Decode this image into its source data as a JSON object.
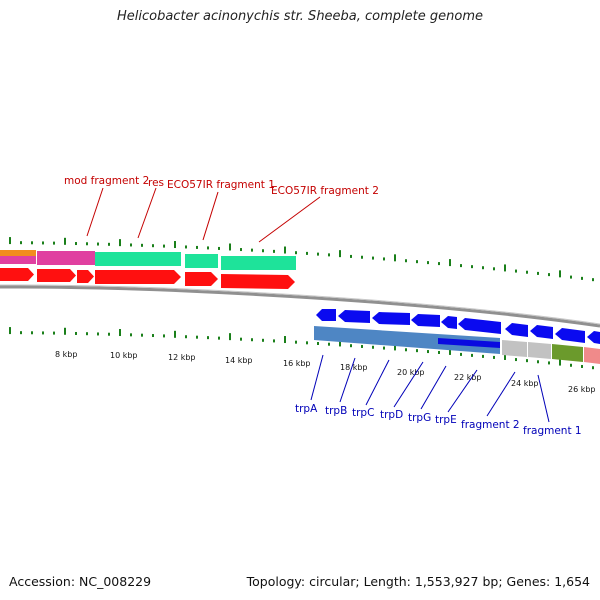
{
  "title": "Helicobacter acinonychis str. Sheeba, complete genome",
  "footer": {
    "accession": "Accession: NC_008229",
    "summary": "Topology: circular; Length: 1,553,927 bp; Genes: 1,654"
  },
  "scale_labels": [
    "8 kbp",
    "10 kbp",
    "12 kbp",
    "14 kbp",
    "16 kbp",
    "18 kbp",
    "20 kbp",
    "22 kbp",
    "24 kbp",
    "26 kbp"
  ],
  "upper_feature_labels": [
    "mod fragment 2",
    "res",
    "ECO57IR fragment 1",
    "ECO57IR fragment 2"
  ],
  "lower_feature_labels": [
    "trpA",
    "trpB",
    "trpC",
    "trpD",
    "trpG",
    "trpE",
    "fragment 2",
    "fragment 1"
  ],
  "colors": {
    "upper_labels": "#c40000",
    "lower_labels": "#0000b8",
    "genes_upper": "#ff0000",
    "genes_lower": "#0000ff",
    "ticks": "#1a7f1a",
    "backbone": "#888888"
  }
}
